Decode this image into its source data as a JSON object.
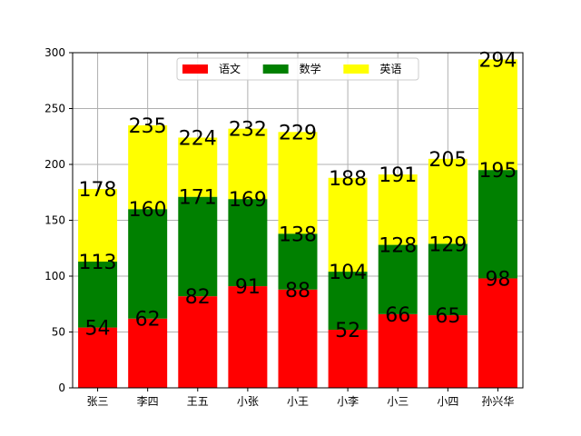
{
  "chart_data": {
    "type": "bar",
    "stacked": true,
    "categories": [
      "张三",
      "李四",
      "王五",
      "小张",
      "小王",
      "小李",
      "小三",
      "小四",
      "孙兴华"
    ],
    "series": [
      {
        "name": "语文",
        "color": "#ff0000",
        "values": [
          54,
          62,
          82,
          91,
          88,
          52,
          66,
          65,
          98
        ]
      },
      {
        "name": "数学",
        "color": "#008000",
        "values": [
          59,
          98,
          89,
          78,
          50,
          52,
          62,
          64,
          97
        ]
      },
      {
        "name": "英语",
        "color": "#ffff00",
        "values": [
          65,
          75,
          53,
          63,
          91,
          84,
          63,
          76,
          99
        ]
      }
    ],
    "data_labels": [
      [
        54,
        62,
        82,
        91,
        88,
        52,
        66,
        65,
        98
      ],
      [
        113,
        160,
        171,
        169,
        138,
        104,
        128,
        129,
        195
      ],
      [
        178,
        235,
        224,
        232,
        229,
        188,
        191,
        205,
        294
      ]
    ],
    "ylim": [
      0,
      300
    ],
    "yticks": [
      0,
      50,
      100,
      150,
      200,
      250,
      300
    ],
    "grid": true,
    "legend_position": "top-center",
    "legend_columns": 3
  }
}
